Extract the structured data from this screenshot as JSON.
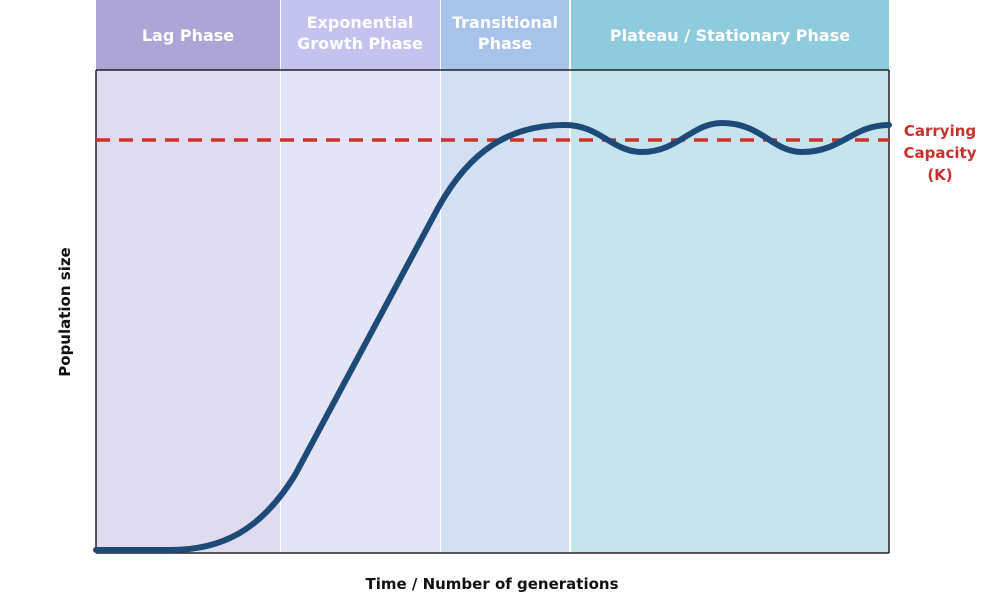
{
  "header": {
    "phases": [
      {
        "lines": [
          "Lag Phase"
        ]
      },
      {
        "lines": [
          "Exponential",
          "Growth Phase"
        ]
      },
      {
        "lines": [
          "Transitional",
          "Phase"
        ]
      },
      {
        "lines": [
          "Plateau / Stationary Phase"
        ]
      }
    ]
  },
  "axes": {
    "y_label": "Population size",
    "x_label": "Time / Number of generations"
  },
  "annotation": {
    "lines": [
      "Carrying",
      "Capacity",
      "(K)"
    ]
  }
}
